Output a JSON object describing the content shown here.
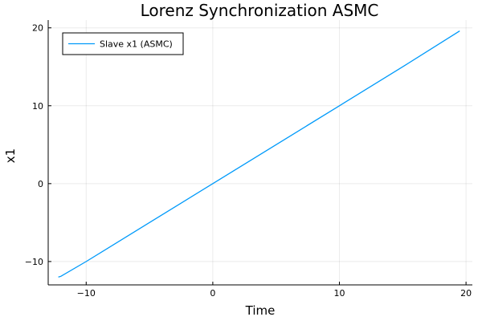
{
  "chart_data": {
    "type": "line",
    "title": "Lorenz Synchronization ASMC",
    "xlabel": "Time",
    "ylabel": "x1",
    "xlim": [
      -13,
      20.5
    ],
    "ylim": [
      -13,
      21
    ],
    "xticks": [
      -10,
      0,
      10,
      20
    ],
    "yticks": [
      -10,
      0,
      10,
      20
    ],
    "xtick_labels": [
      "−10",
      "0",
      "10",
      "20"
    ],
    "ytick_labels": [
      "−10",
      "0",
      "10",
      "20"
    ],
    "grid": true,
    "legend_position": "top-left",
    "series": [
      {
        "name": "Slave x1 (ASMC)",
        "color": "#009AFA",
        "x": [
          -12.2,
          -12.0,
          -10.0,
          -5.0,
          0.0,
          5.0,
          10.0,
          15.0,
          19.5
        ],
        "y": [
          -12.0,
          -11.9,
          -10.0,
          -5.0,
          0.0,
          5.0,
          10.0,
          15.0,
          19.6
        ]
      }
    ]
  }
}
